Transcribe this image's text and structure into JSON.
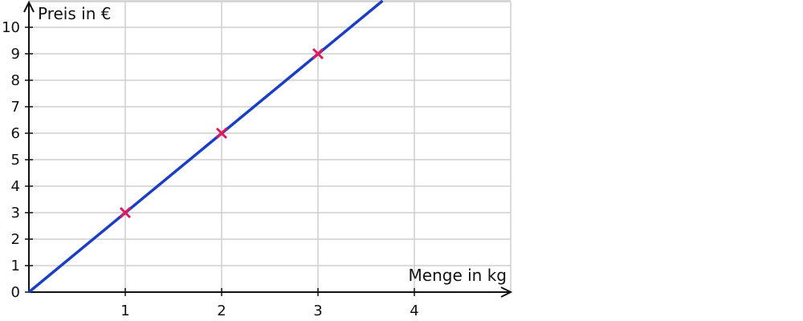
{
  "chart_data": {
    "type": "line",
    "xlabel": "Menge in kg",
    "ylabel": "Preis in €",
    "xlim": [
      0,
      5
    ],
    "ylim": [
      0,
      11
    ],
    "x_ticks": [
      "1",
      "2",
      "3",
      "4"
    ],
    "y_ticks": [
      "0",
      "1",
      "2",
      "3",
      "4",
      "5",
      "6",
      "7",
      "8",
      "9",
      "10"
    ],
    "grid": true,
    "series": [
      {
        "x": [
          0,
          3.67
        ],
        "y": [
          0,
          11
        ],
        "color": "#1a3fc4"
      }
    ],
    "points": [
      {
        "x": 1,
        "y": 3,
        "marker": "x",
        "color": "#e0185e"
      },
      {
        "x": 2,
        "y": 6,
        "marker": "x",
        "color": "#e0185e"
      },
      {
        "x": 3,
        "y": 9,
        "marker": "x",
        "color": "#e0185e"
      }
    ]
  }
}
